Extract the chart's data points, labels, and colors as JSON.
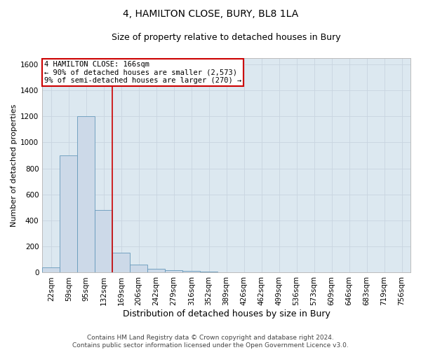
{
  "title": "4, HAMILTON CLOSE, BURY, BL8 1LA",
  "subtitle": "Size of property relative to detached houses in Bury",
  "xlabel": "Distribution of detached houses by size in Bury",
  "ylabel": "Number of detached properties",
  "categories": [
    "22sqm",
    "59sqm",
    "95sqm",
    "132sqm",
    "169sqm",
    "206sqm",
    "242sqm",
    "279sqm",
    "316sqm",
    "352sqm",
    "389sqm",
    "426sqm",
    "462sqm",
    "499sqm",
    "536sqm",
    "573sqm",
    "609sqm",
    "646sqm",
    "683sqm",
    "719sqm",
    "756sqm"
  ],
  "values": [
    40,
    900,
    1200,
    480,
    155,
    60,
    30,
    18,
    14,
    8,
    3,
    0,
    0,
    0,
    0,
    0,
    0,
    0,
    0,
    0,
    0
  ],
  "bar_color": "#ccd9e8",
  "bar_edge_color": "#6699bb",
  "vline_color": "#cc0000",
  "annotation_line1": "4 HAMILTON CLOSE: 166sqm",
  "annotation_line2": "← 90% of detached houses are smaller (2,573)",
  "annotation_line3": "9% of semi-detached houses are larger (270) →",
  "annotation_box_edge_color": "#cc0000",
  "annotation_box_facecolor": "#ffffff",
  "ylim_max": 1650,
  "yticks": [
    0,
    200,
    400,
    600,
    800,
    1000,
    1200,
    1400,
    1600
  ],
  "grid_color": "#c8d4e0",
  "background_color": "#dce8f0",
  "footer_line1": "Contains HM Land Registry data © Crown copyright and database right 2024.",
  "footer_line2": "Contains public sector information licensed under the Open Government Licence v3.0.",
  "title_fontsize": 10,
  "subtitle_fontsize": 9,
  "ylabel_fontsize": 8,
  "xlabel_fontsize": 9,
  "tick_fontsize": 7.5,
  "annotation_fontsize": 7.5,
  "footer_fontsize": 6.5
}
